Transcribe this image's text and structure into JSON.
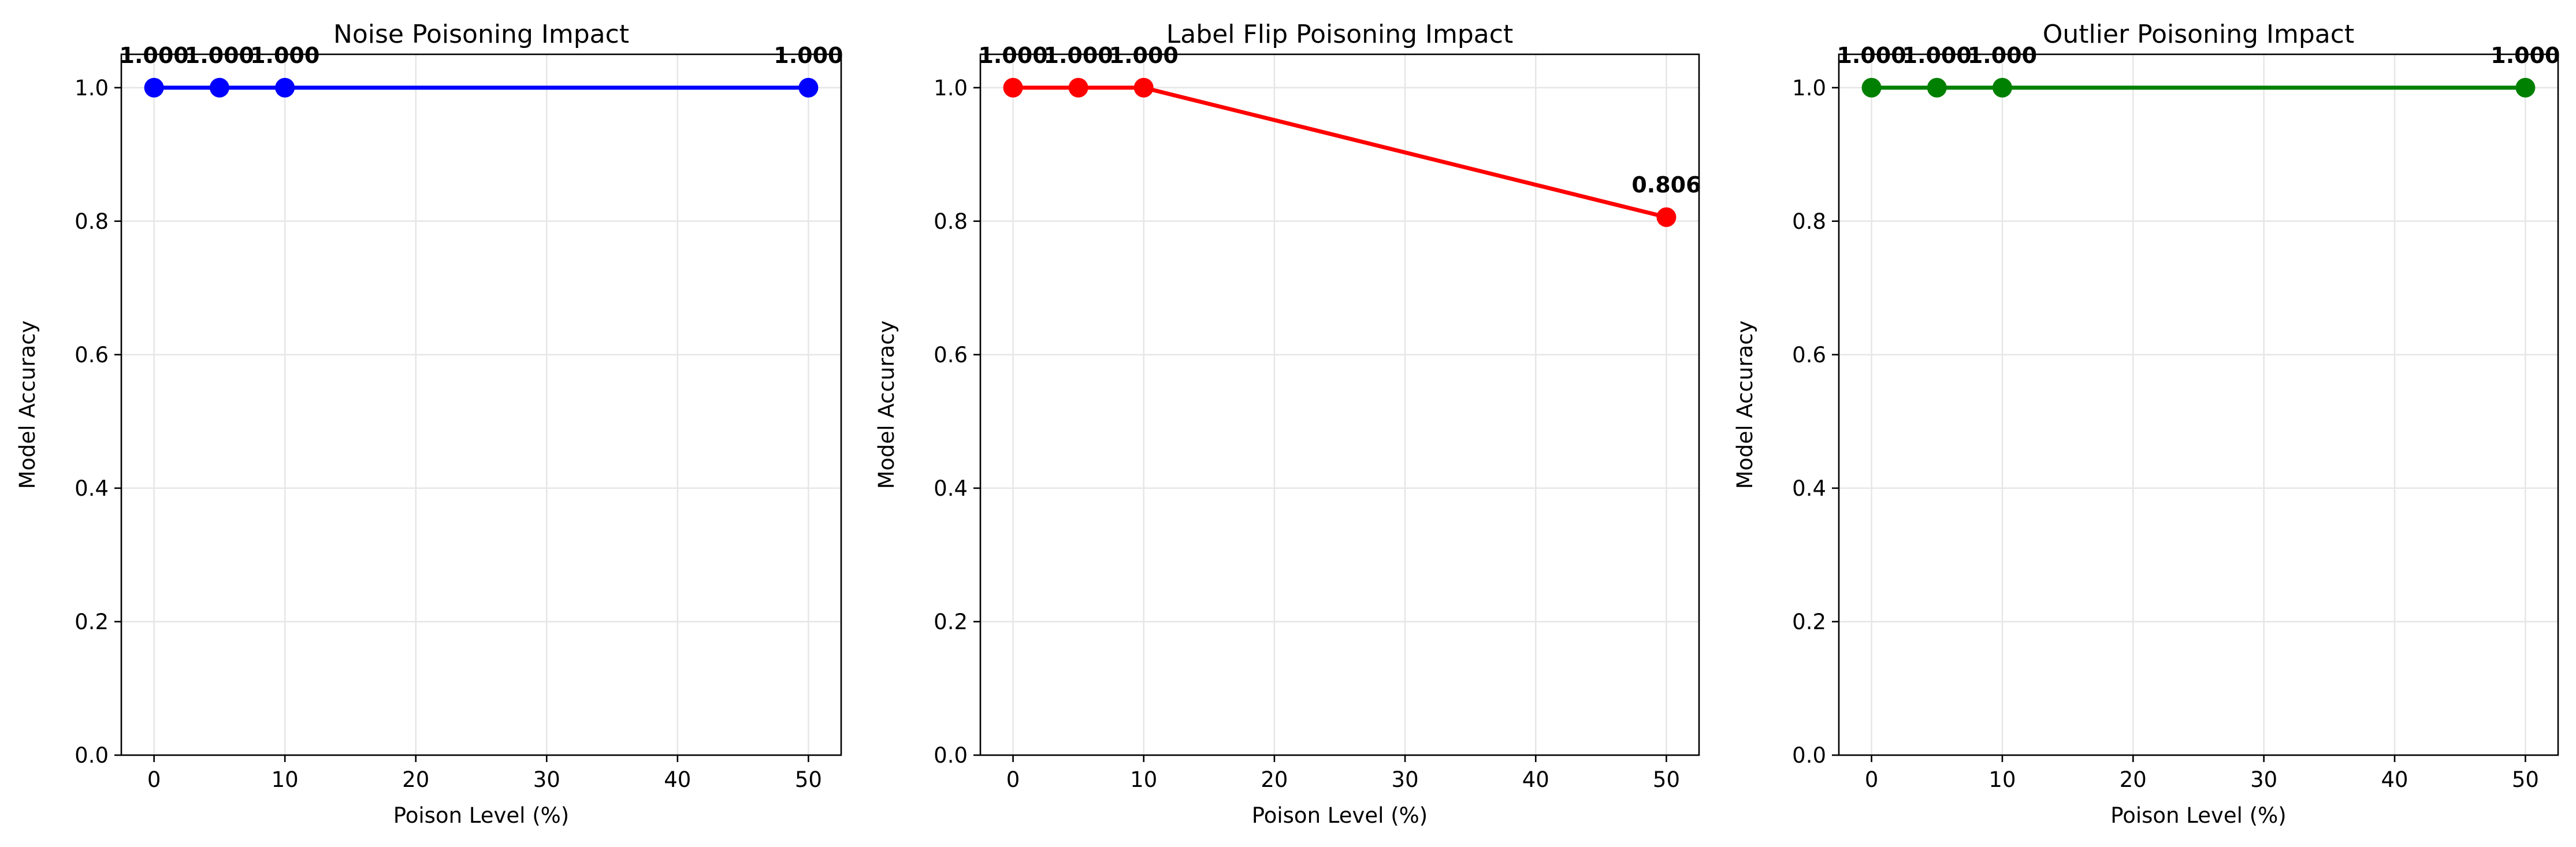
{
  "chart_data": [
    {
      "type": "line",
      "title": "Noise Poisoning Impact",
      "xlabel": "Poison Level (%)",
      "ylabel": "Model Accuracy",
      "x": [
        0,
        5,
        10,
        50
      ],
      "values": [
        1.0,
        1.0,
        1.0,
        1.0
      ],
      "data_labels": [
        "1.000",
        "1.000",
        "1.000",
        "1.000"
      ],
      "color": "#0000ff",
      "xlim": [
        -2.5,
        52.5
      ],
      "ylim": [
        0,
        1.05
      ],
      "xticks": [
        0,
        10,
        20,
        30,
        40,
        50
      ],
      "xtick_labels": [
        "0",
        "10",
        "20",
        "30",
        "40",
        "50"
      ],
      "yticks": [
        0,
        0.2,
        0.4,
        0.6,
        0.8,
        1.0
      ],
      "ytick_labels": [
        "0.0",
        "0.2",
        "0.4",
        "0.6",
        "0.8",
        "1.0"
      ],
      "grid": true
    },
    {
      "type": "line",
      "title": "Label Flip Poisoning Impact",
      "xlabel": "Poison Level (%)",
      "ylabel": "Model Accuracy",
      "x": [
        0,
        5,
        10,
        50
      ],
      "values": [
        1.0,
        1.0,
        1.0,
        0.806
      ],
      "data_labels": [
        "1.000",
        "1.000",
        "1.000",
        "0.806"
      ],
      "color": "#ff0000",
      "xlim": [
        -2.5,
        52.5
      ],
      "ylim": [
        0,
        1.05
      ],
      "xticks": [
        0,
        10,
        20,
        30,
        40,
        50
      ],
      "xtick_labels": [
        "0",
        "10",
        "20",
        "30",
        "40",
        "50"
      ],
      "yticks": [
        0,
        0.2,
        0.4,
        0.6,
        0.8,
        1.0
      ],
      "ytick_labels": [
        "0.0",
        "0.2",
        "0.4",
        "0.6",
        "0.8",
        "1.0"
      ],
      "grid": true
    },
    {
      "type": "line",
      "title": "Outlier Poisoning Impact",
      "xlabel": "Poison Level (%)",
      "ylabel": "Model Accuracy",
      "x": [
        0,
        5,
        10,
        50
      ],
      "values": [
        1.0,
        1.0,
        1.0,
        1.0
      ],
      "data_labels": [
        "1.000",
        "1.000",
        "1.000",
        "1.000"
      ],
      "color": "#008000",
      "xlim": [
        -2.5,
        52.5
      ],
      "ylim": [
        0,
        1.05
      ],
      "xticks": [
        0,
        10,
        20,
        30,
        40,
        50
      ],
      "xtick_labels": [
        "0",
        "10",
        "20",
        "30",
        "40",
        "50"
      ],
      "yticks": [
        0,
        0.2,
        0.4,
        0.6,
        0.8,
        1.0
      ],
      "ytick_labels": [
        "0.0",
        "0.2",
        "0.4",
        "0.6",
        "0.8",
        "1.0"
      ],
      "grid": true
    }
  ]
}
